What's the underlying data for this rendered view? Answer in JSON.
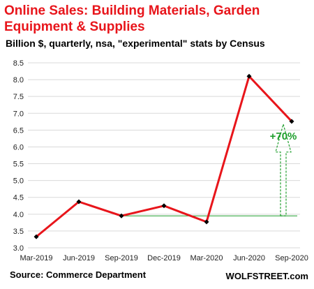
{
  "header": {
    "title": "Online Sales: Building Materials, Garden Equipment & Supplies",
    "subtitle": "Billion $, quarterly, nsa, \"experimental\" stats by Census"
  },
  "footer": {
    "source": "Source: Commerce Department",
    "brand": "WOLFSTREET.com"
  },
  "chart_data": {
    "type": "line",
    "categories": [
      "Mar-2019",
      "Jun-2019",
      "Sep-2019",
      "Dec-2019",
      "Mar-2020",
      "Jun-2020",
      "Sep-2020"
    ],
    "values": [
      3.33,
      4.37,
      3.95,
      4.25,
      3.77,
      8.1,
      6.76
    ],
    "ylim": [
      3.0,
      8.5
    ],
    "yticks": [
      "3.0",
      "3.5",
      "4.0",
      "4.5",
      "5.0",
      "5.5",
      "6.0",
      "6.5",
      "7.0",
      "7.5",
      "8.0",
      "8.5"
    ],
    "grid": true,
    "line_color": "#e8151b",
    "annotation": {
      "label": "+70%",
      "baseline_value": 3.95,
      "color": "#1e9e2c"
    }
  }
}
